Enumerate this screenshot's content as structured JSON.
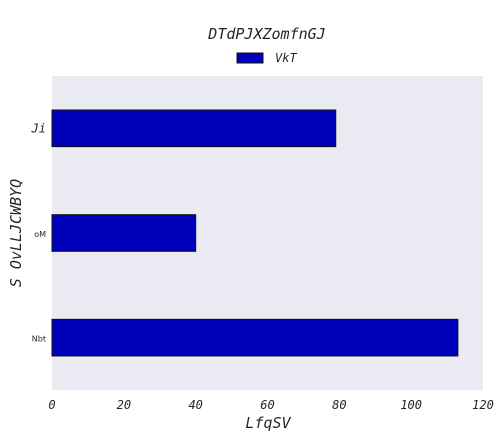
{
  "chart_data": {
    "type": "bar",
    "orientation": "horizontal",
    "title": "DTdPJXZomfnGJ",
    "xlabel": "LfqSV",
    "ylabel": "S OvLLJCWBYQ",
    "categories": [
      "Nbt",
      "oM",
      "Ji"
    ],
    "series": [
      {
        "name": "VkT",
        "values": [
          113,
          40,
          79
        ]
      }
    ],
    "xlim": [
      0,
      120
    ],
    "xticks": [
      0,
      20,
      40,
      60,
      80,
      100,
      120
    ],
    "grid": false,
    "legend_position": "top-center",
    "colors": {
      "bar_fill": "#0000bb",
      "bar_edge": "#111111",
      "plot_background": "#eaeaf2",
      "text": "#262626"
    }
  }
}
